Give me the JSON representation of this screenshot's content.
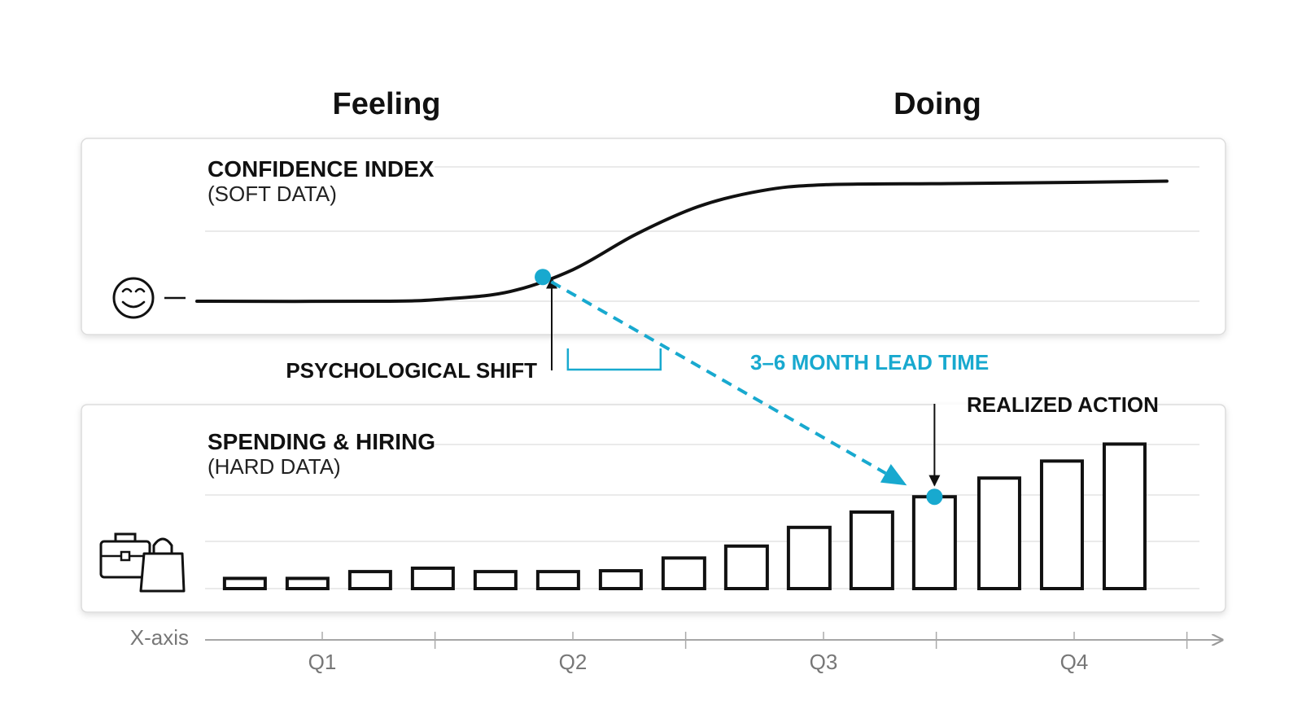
{
  "headers": {
    "left": "Feeling",
    "right": "Doing"
  },
  "top_panel": {
    "title": "CONFIDENCE INDEX",
    "subtitle": "(SOFT DATA)",
    "icon": "smiley-icon"
  },
  "bottom_panel": {
    "title": "SPENDING & HIRING",
    "subtitle": "(HARD DATA)",
    "icon": "briefcase-bag-icon"
  },
  "annotations": {
    "psych_shift": "PSYCHOLOGICAL SHIFT",
    "lead_time": "3–6 MONTH LEAD TIME",
    "realized_action": "REALIZED ACTION"
  },
  "colors": {
    "accent": "#18a9cf",
    "ink": "#111111",
    "grid": "#e3e3e3",
    "axis": "#999999"
  },
  "chart_data": {
    "type": "line+bar",
    "x_axis": {
      "label": "X-axis",
      "ticks": [
        "Q1",
        "Q2",
        "Q3",
        "Q4"
      ],
      "range": [
        0,
        4
      ]
    },
    "confidence_index": {
      "type": "line",
      "x": [
        0,
        0.75,
        1.0,
        1.25,
        1.5,
        1.75,
        2.0,
        2.25,
        2.5,
        3.0,
        3.5,
        3.87
      ],
      "y": [
        0.0,
        0.0,
        0.02,
        0.08,
        0.26,
        0.55,
        0.78,
        0.91,
        0.96,
        0.97,
        0.98,
        0.99
      ],
      "ylim": [
        0,
        1
      ],
      "marker": {
        "x": 1.38,
        "y": 0.2,
        "label": "PSYCHOLOGICAL SHIFT"
      }
    },
    "spending_hiring": {
      "type": "bar",
      "x": [
        0.11,
        0.36,
        0.61,
        0.86,
        1.11,
        1.36,
        1.61,
        1.86,
        2.11,
        2.36,
        2.61,
        2.86,
        3.12,
        3.37,
        3.62
      ],
      "values": [
        0.12,
        0.12,
        0.2,
        0.24,
        0.2,
        0.2,
        0.21,
        0.36,
        0.5,
        0.72,
        0.9,
        1.08,
        1.3,
        1.5,
        1.7
      ],
      "ylim": [
        0,
        1.8
      ],
      "marker": {
        "bar_index": 11,
        "label": "REALIZED ACTION"
      }
    },
    "lead_time_range_q": [
      1.48,
      1.85
    ],
    "grid": true
  }
}
